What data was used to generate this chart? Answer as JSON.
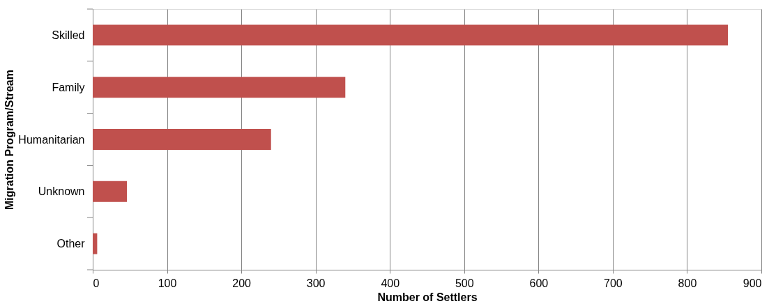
{
  "chart_data": {
    "type": "bar",
    "orientation": "horizontal",
    "xlabel": "Number of Settlers",
    "ylabel": "Migration Program/Stream",
    "categories": [
      "Skilled",
      "Family",
      "Humanitarian",
      "Unknown",
      "Other"
    ],
    "values": [
      855,
      340,
      240,
      46,
      6
    ],
    "color": "#c0504d",
    "xlim": [
      0,
      900
    ],
    "xticks": [
      0,
      100,
      200,
      300,
      400,
      500,
      600,
      700,
      800,
      900
    ],
    "grid": "x"
  }
}
